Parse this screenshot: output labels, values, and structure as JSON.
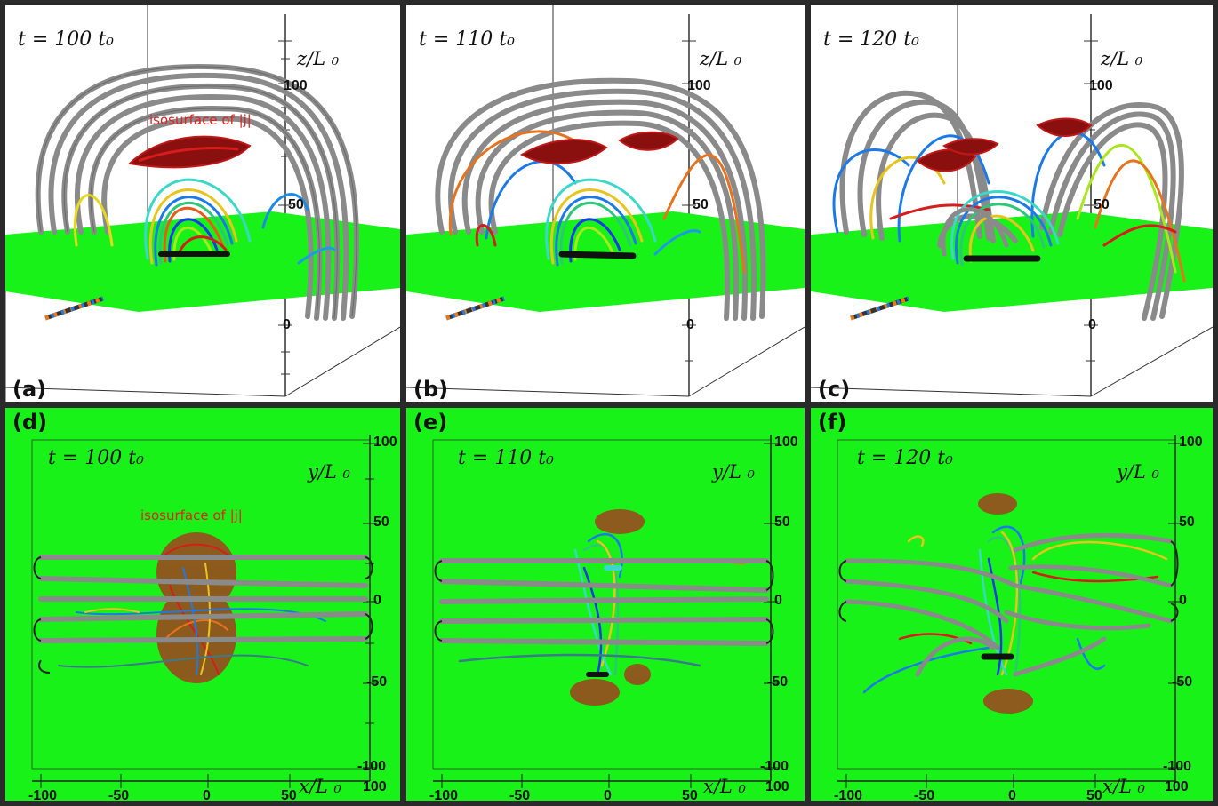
{
  "colors": {
    "photosphere_green": "#19f219",
    "panel_white": "#ffffff",
    "iso_red": "#d61c1c",
    "iso_dark_red": "#8a1010",
    "iso_brown": "#9a4a1e",
    "fieldline_gray": "#8a8a8a",
    "frame_dark": "#2a2a2a"
  },
  "iso_label": "isosurface of |j|",
  "top_row": [
    {
      "letter": "(a)",
      "time": "t = 100 t₀",
      "zlabel": "z/L ₀",
      "zticks": [
        "100",
        "50",
        "0"
      ]
    },
    {
      "letter": "(b)",
      "time": "t = 110 t₀",
      "zlabel": "z/L ₀",
      "zticks": [
        "100",
        "50",
        "0"
      ]
    },
    {
      "letter": "(c)",
      "time": "t = 120 t₀",
      "zlabel": "z/L ₀",
      "zticks": [
        "100",
        "50",
        "0"
      ]
    }
  ],
  "bottom_row": [
    {
      "letter": "(d)",
      "time": "t = 100 t₀",
      "ylabel": "y/L ₀",
      "xlabel": "x/L ₀",
      "yticks": [
        "100",
        "50",
        "0",
        "-50",
        "-100"
      ],
      "xticks": [
        "-100",
        "-50",
        "0",
        "50",
        "100"
      ]
    },
    {
      "letter": "(e)",
      "time": "t = 110 t₀",
      "ylabel": "y/L ₀",
      "xlabel": "x/L ₀",
      "yticks": [
        "100",
        "50",
        "0",
        "-50",
        "-100"
      ],
      "xticks": [
        "-100",
        "-50",
        "0",
        "50",
        "100"
      ]
    },
    {
      "letter": "(f)",
      "time": "t = 120 t₀",
      "ylabel": "y/L ₀",
      "xlabel": "x/L ₀",
      "yticks": [
        "100",
        "50",
        "0",
        "-50",
        "-100"
      ],
      "xticks": [
        "-100",
        "-50",
        "0",
        "50",
        "100"
      ]
    }
  ]
}
